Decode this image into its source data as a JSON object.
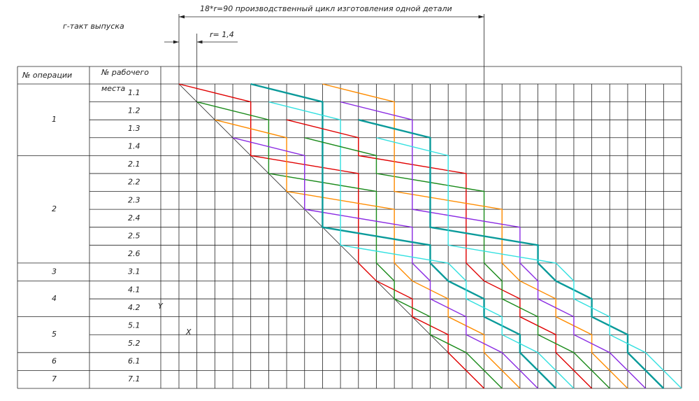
{
  "header": {
    "cycle": "18*r=90 производственный цикл изготовления одной детали",
    "takt_label": "г-такт выпуска",
    "takt": "r= 1,4",
    "operation_col": "№ операции",
    "workplace_col": [
      "№ рабочего",
      "места"
    ]
  },
  "operations": [
    {
      "label": "1",
      "workplaces": [
        "1.1",
        "1.2",
        "1.3",
        "1.4"
      ]
    },
    {
      "label": "2",
      "workplaces": [
        "2.1",
        "2.2",
        "2.3",
        "2.4",
        "2.5",
        "2.6"
      ]
    },
    {
      "label": "3",
      "workplaces": [
        "3.1"
      ]
    },
    {
      "label": "4",
      "workplaces": [
        "4.1",
        "4.2"
      ]
    },
    {
      "label": "5",
      "workplaces": [
        "5.1",
        "5.2"
      ]
    },
    {
      "label": "6",
      "workplaces": [
        "6.1"
      ]
    },
    {
      "label": "7",
      "workplaces": [
        "7.1"
      ]
    }
  ],
  "axis_marks": {
    "y": "Y",
    "x": "X"
  }
}
